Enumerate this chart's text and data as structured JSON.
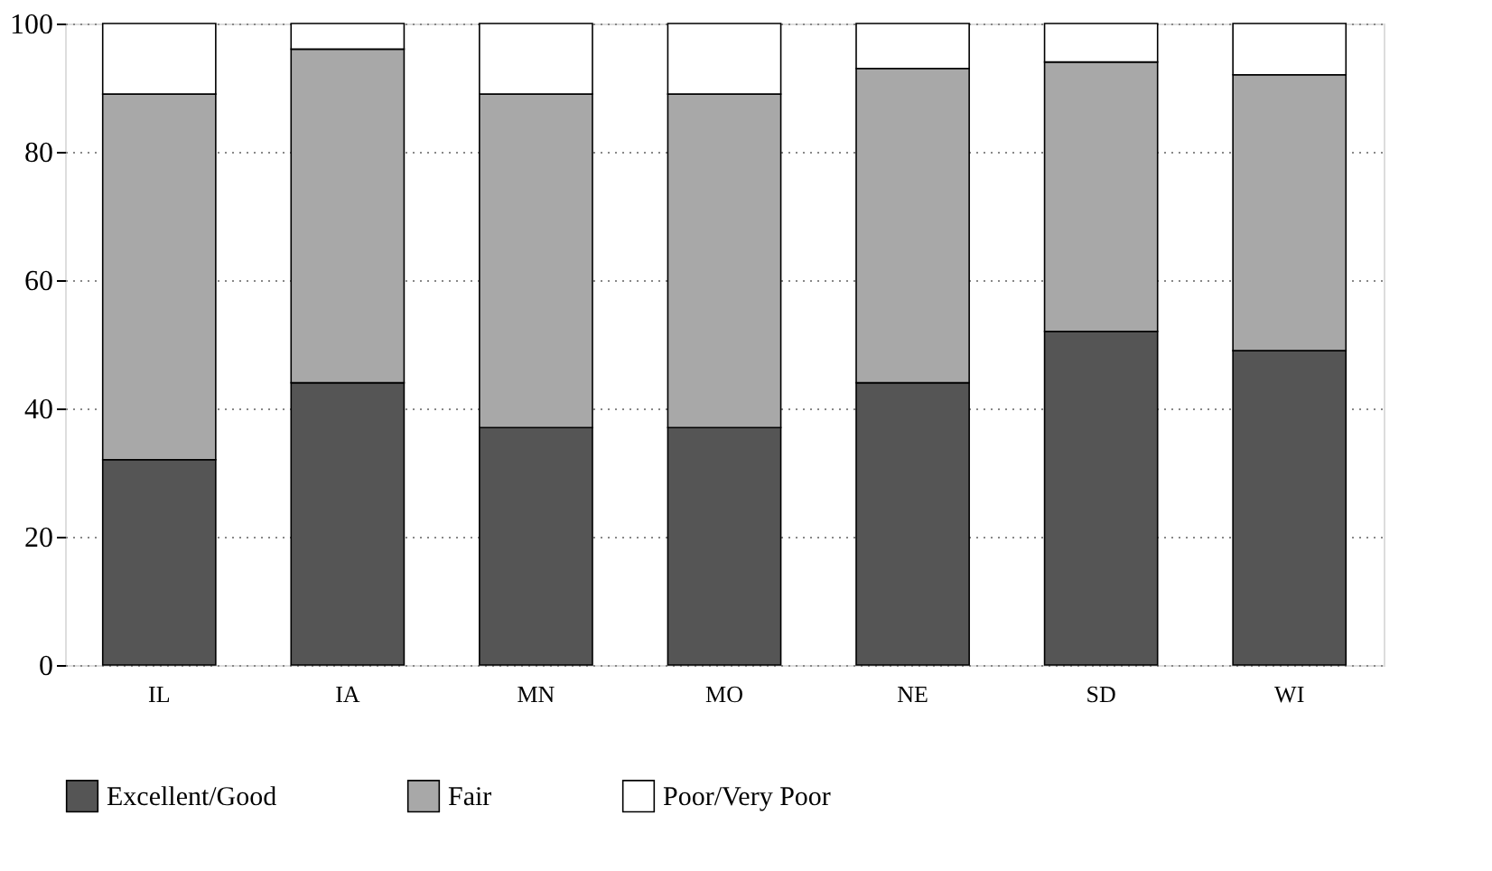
{
  "chart_data": {
    "type": "bar",
    "stacked": true,
    "categories": [
      "IL",
      "IA",
      "MN",
      "MO",
      "NE",
      "SD",
      "WI"
    ],
    "series": [
      {
        "name": "Excellent/Good",
        "color": "#555555",
        "values": [
          32,
          44,
          37,
          37,
          44,
          52,
          49
        ]
      },
      {
        "name": "Fair",
        "color": "#a8a8a8",
        "values": [
          57,
          52,
          52,
          52,
          49,
          42,
          43
        ]
      },
      {
        "name": "Poor/Very Poor",
        "color": "#ffffff",
        "values": [
          11,
          4,
          11,
          11,
          7,
          6,
          8
        ]
      }
    ],
    "ylim": [
      0,
      100
    ],
    "yticks": [
      0,
      20,
      40,
      60,
      80,
      100
    ],
    "grid": "y",
    "legend": "bottom"
  }
}
